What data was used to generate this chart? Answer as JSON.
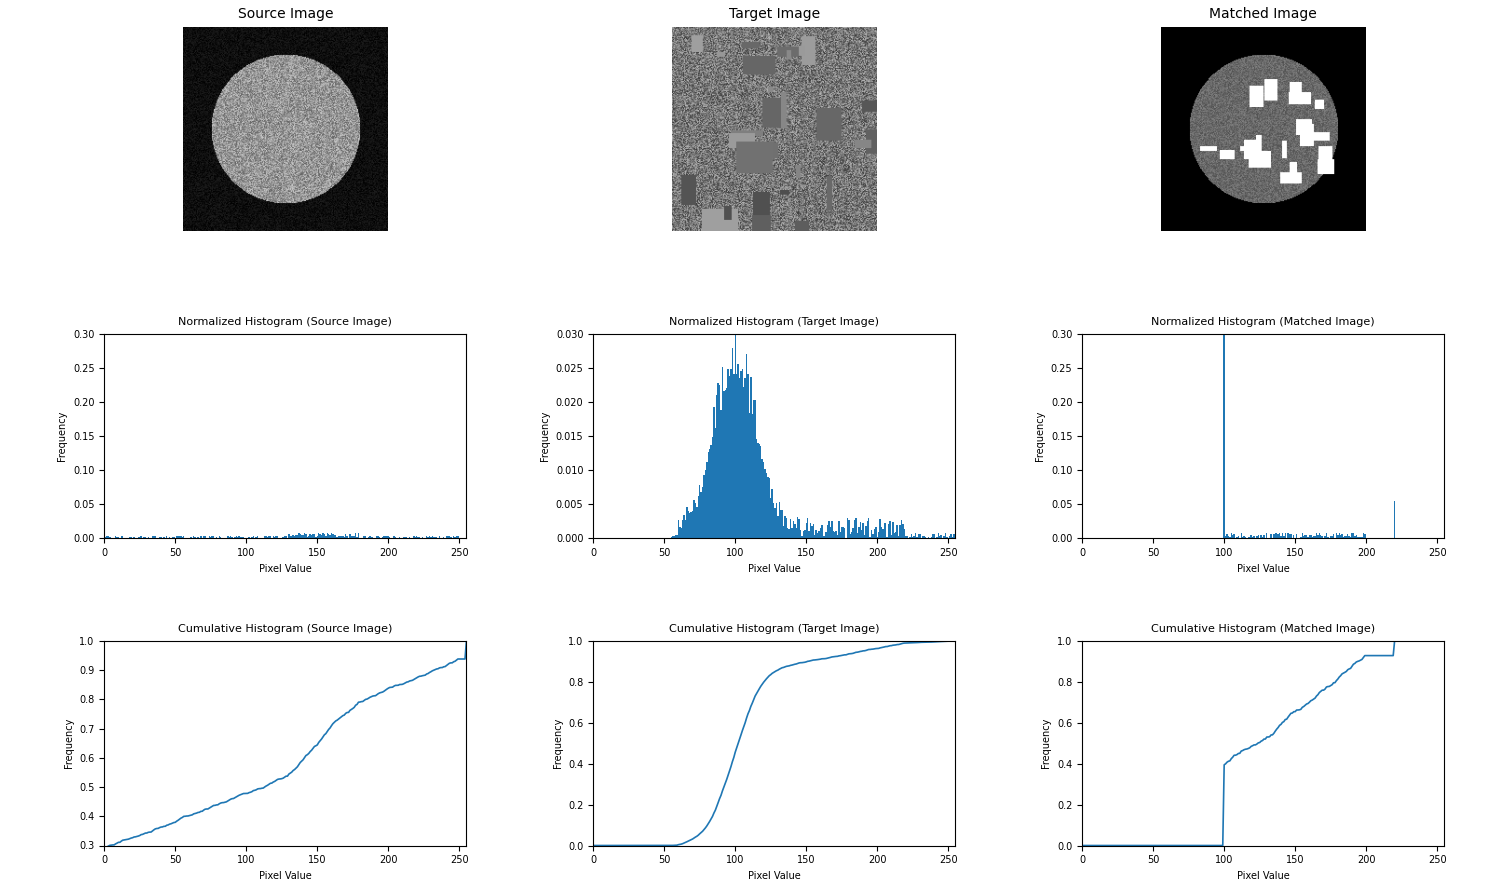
{
  "title_source_image": "Source Image",
  "title_target_image": "Target Image",
  "title_matched_image": "Matched Image",
  "hist_title_source": "Normalized Histogram (Source Image)",
  "hist_title_target": "Normalized Histogram (Target Image)",
  "hist_title_matched": "Normalized Histogram (Matched Image)",
  "cumhist_title_source": "Cumulative Histogram (Source Image)",
  "cumhist_title_target": "Cumulative Histogram (Target Image)",
  "cumhist_title_matched": "Cumulative Histogram (Matched Image)",
  "xlabel": "Pixel Value",
  "ylabel": "Frequency",
  "bar_color": "#1f77b4",
  "line_color": "#1f77b4",
  "background_color": "#ffffff",
  "figsize": [
    14.89,
    8.9
  ],
  "dpi": 100
}
